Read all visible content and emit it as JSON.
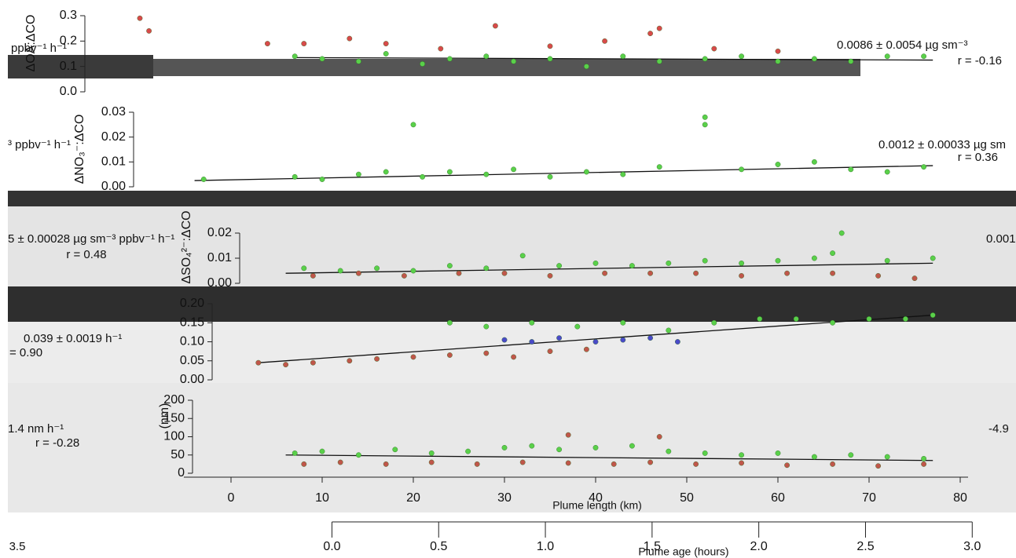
{
  "chart_data": [
    {
      "type": "scatter",
      "ylabel": "ΔOA:ΔCO",
      "xlim": [
        -25,
        86
      ],
      "ylim": [
        0,
        0.3
      ],
      "yticks": [
        {
          "value": 0,
          "label": "0.0"
        },
        0.1,
        0.2,
        0.3
      ],
      "annotations": [
        "ppbv⁻¹ h⁻¹",
        "0.0086 ± 0.0054 µg sm⁻³",
        "r = -0.16"
      ],
      "series": [
        {
          "color": "#5ad04a",
          "x": [
            7,
            10,
            14,
            17,
            21,
            24,
            28,
            31,
            35,
            39,
            43,
            47,
            52,
            56,
            60,
            64,
            68,
            72,
            76
          ],
          "values": [
            0.14,
            0.13,
            0.12,
            0.15,
            0.11,
            0.13,
            0.14,
            0.12,
            0.13,
            0.1,
            0.14,
            0.12,
            0.13,
            0.14,
            0.12,
            0.13,
            0.12,
            0.14,
            0.14
          ]
        },
        {
          "color": "#d84a4a",
          "x": [
            -10,
            -9,
            4,
            8,
            13,
            17,
            23,
            29,
            35,
            41,
            46,
            47,
            53,
            60
          ],
          "values": [
            0.29,
            0.24,
            0.19,
            0.19,
            0.21,
            0.19,
            0.17,
            0.26,
            0.18,
            0.2,
            0.23,
            0.25,
            0.17,
            0.16
          ]
        }
      ],
      "fit": {
        "x": [
          7,
          77
        ],
        "values": [
          0.135,
          0.125
        ]
      }
    },
    {
      "type": "scatter",
      "ylabel": "ΔNO₃⁻:ΔCO",
      "xlim": [
        -25,
        86
      ],
      "ylim": [
        0,
        0.03
      ],
      "yticks": [
        {
          "value": 0,
          "label": "0.00"
        },
        0.01,
        0.02,
        0.03
      ],
      "annotations": [
        "³ ppbv⁻¹ h⁻¹",
        "0.0012 ± 0.00033 µg sm",
        "r = 0.36"
      ],
      "series": [
        {
          "color": "#5ad04a",
          "x": [
            -3,
            7,
            10,
            14,
            17,
            20,
            21,
            24,
            28,
            31,
            35,
            39,
            43,
            47,
            52,
            52,
            56,
            60,
            64,
            68,
            72,
            76
          ],
          "values": [
            0.003,
            0.004,
            0.003,
            0.005,
            0.006,
            0.025,
            0.004,
            0.006,
            0.005,
            0.007,
            0.004,
            0.006,
            0.005,
            0.008,
            0.028,
            0.025,
            0.007,
            0.009,
            0.01,
            0.007,
            0.006,
            0.008
          ]
        }
      ],
      "fit": {
        "x": [
          -4,
          77
        ],
        "values": [
          0.0025,
          0.0085
        ]
      }
    },
    {
      "type": "scatter",
      "ylabel": "ΔSO₄²⁻:ΔCO",
      "xlim": [
        -25,
        86
      ],
      "ylim": [
        0,
        0.02
      ],
      "yticks": [
        {
          "value": 0,
          "label": "0.00"
        },
        0.01,
        0.02
      ],
      "annotations": [
        "5 ± 0.00028 µg sm⁻³ ppbv⁻¹ h⁻¹",
        "r = 0.48",
        "0.001"
      ],
      "series": [
        {
          "color": "#5ad04a",
          "x": [
            8,
            12,
            16,
            20,
            24,
            28,
            32,
            36,
            40,
            44,
            48,
            52,
            56,
            60,
            64,
            66,
            67,
            72,
            77
          ],
          "values": [
            0.006,
            0.005,
            0.006,
            0.005,
            0.007,
            0.006,
            0.011,
            0.007,
            0.008,
            0.007,
            0.008,
            0.009,
            0.008,
            0.009,
            0.01,
            0.012,
            0.02,
            0.009,
            0.01
          ]
        },
        {
          "color": "#c0564a",
          "x": [
            9,
            14,
            19,
            25,
            30,
            35,
            41,
            46,
            51,
            56,
            61,
            66,
            71,
            75
          ],
          "values": [
            0.003,
            0.004,
            0.003,
            0.004,
            0.004,
            0.003,
            0.004,
            0.004,
            0.004,
            0.003,
            0.004,
            0.004,
            0.003,
            0.002
          ]
        }
      ],
      "fit": {
        "x": [
          6,
          77
        ],
        "values": [
          0.004,
          0.008
        ]
      }
    },
    {
      "type": "scatter",
      "xlim": [
        -25,
        86
      ],
      "ylim": [
        0,
        0.2
      ],
      "yticks": [
        {
          "value": 0,
          "label": "0.00"
        },
        0.05,
        {
          "value": 0.1,
          "label": "0.10"
        },
        0.15,
        {
          "value": 0.2,
          "label": "0.20"
        }
      ],
      "annotations": [
        "0.039 ± 0.0019 h⁻¹",
        "= 0.90"
      ],
      "series": [
        {
          "color": "#5ad04a",
          "x": [
            24,
            28,
            33,
            38,
            43,
            48,
            53,
            58,
            62,
            66,
            70,
            74,
            77
          ],
          "values": [
            0.15,
            0.14,
            0.15,
            0.14,
            0.15,
            0.13,
            0.15,
            0.16,
            0.16,
            0.15,
            0.16,
            0.16,
            0.17
          ]
        },
        {
          "color": "#c0564a",
          "x": [
            3,
            6,
            9,
            13,
            16,
            20,
            24,
            28,
            31,
            35,
            39
          ],
          "values": [
            0.045,
            0.04,
            0.045,
            0.05,
            0.055,
            0.06,
            0.065,
            0.07,
            0.06,
            0.075,
            0.08
          ]
        },
        {
          "color": "#4a4ac8",
          "x": [
            30,
            33,
            36,
            40,
            43,
            46,
            49
          ],
          "values": [
            0.105,
            0.1,
            0.11,
            0.1,
            0.105,
            0.11,
            0.1
          ]
        }
      ],
      "fit": {
        "x": [
          3,
          77
        ],
        "values": [
          0.045,
          0.17
        ]
      }
    },
    {
      "type": "scatter",
      "ylabel": "(nm)",
      "xlabel": "Plume length (km)",
      "xlim": [
        -25,
        86
      ],
      "ylim": [
        0,
        200
      ],
      "yticks": [
        0,
        50,
        100,
        150,
        200
      ],
      "xticks": [
        0,
        10,
        20,
        30,
        40,
        50,
        60,
        70,
        80
      ],
      "x2label": "Plume age (hours)",
      "x2lim": [
        -1.5406,
        3.2
      ],
      "x2ticks": [
        {
          "value": 0,
          "label": "0.0"
        },
        0.5,
        {
          "value": 1,
          "label": "1.0"
        },
        1.5,
        {
          "value": 2,
          "label": "2.0"
        },
        2.5,
        {
          "value": 3,
          "label": "3.0"
        }
      ],
      "annotations": [
        "1.4 nm h⁻¹",
        "r = -0.28",
        "-4.9",
        "3.5"
      ],
      "series": [
        {
          "color": "#5ad04a",
          "x": [
            7,
            10,
            14,
            18,
            22,
            26,
            30,
            33,
            36,
            40,
            44,
            48,
            52,
            56,
            60,
            64,
            68,
            72,
            76
          ],
          "values": [
            55,
            60,
            50,
            65,
            55,
            60,
            70,
            75,
            65,
            70,
            75,
            60,
            55,
            50,
            55,
            45,
            50,
            45,
            40
          ]
        },
        {
          "color": "#c0564a",
          "x": [
            8,
            12,
            17,
            22,
            27,
            32,
            37,
            37,
            42,
            46,
            47,
            51,
            56,
            61,
            66,
            71,
            76
          ],
          "values": [
            25,
            30,
            25,
            30,
            25,
            30,
            28,
            105,
            25,
            30,
            100,
            25,
            28,
            22,
            25,
            20,
            25
          ]
        }
      ],
      "fit": {
        "x": [
          6,
          77
        ],
        "values": [
          50,
          35
        ]
      }
    }
  ]
}
